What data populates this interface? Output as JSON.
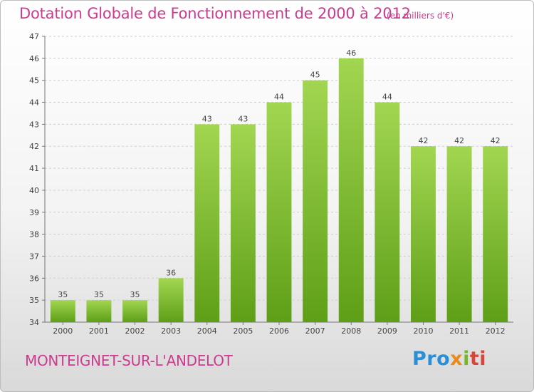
{
  "header": {
    "title": "Dotation Globale de Fonctionnement de 2000 à 2012",
    "unit": "(en milliers d'€)"
  },
  "footer": {
    "commune": "MONTEIGNET-SUR-L'ANDELOT",
    "logo_parts": [
      "Pro",
      "x",
      "i",
      "ti"
    ]
  },
  "colors": {
    "bar_light": "#a2d651",
    "bar_dark": "#5e9f17",
    "title": "#cc3b8f"
  },
  "chart_data": {
    "type": "bar",
    "categories": [
      "2000",
      "2001",
      "2002",
      "2003",
      "2004",
      "2005",
      "2006",
      "2007",
      "2008",
      "2009",
      "2010",
      "2011",
      "2012"
    ],
    "values": [
      35,
      35,
      35,
      36,
      43,
      43,
      44,
      45,
      46,
      44,
      42,
      42,
      42
    ],
    "ylim": [
      34,
      47
    ],
    "yticks": [
      34,
      35,
      36,
      37,
      38,
      39,
      40,
      41,
      42,
      43,
      44,
      45,
      46,
      47
    ],
    "grid": true,
    "legend": "none"
  }
}
